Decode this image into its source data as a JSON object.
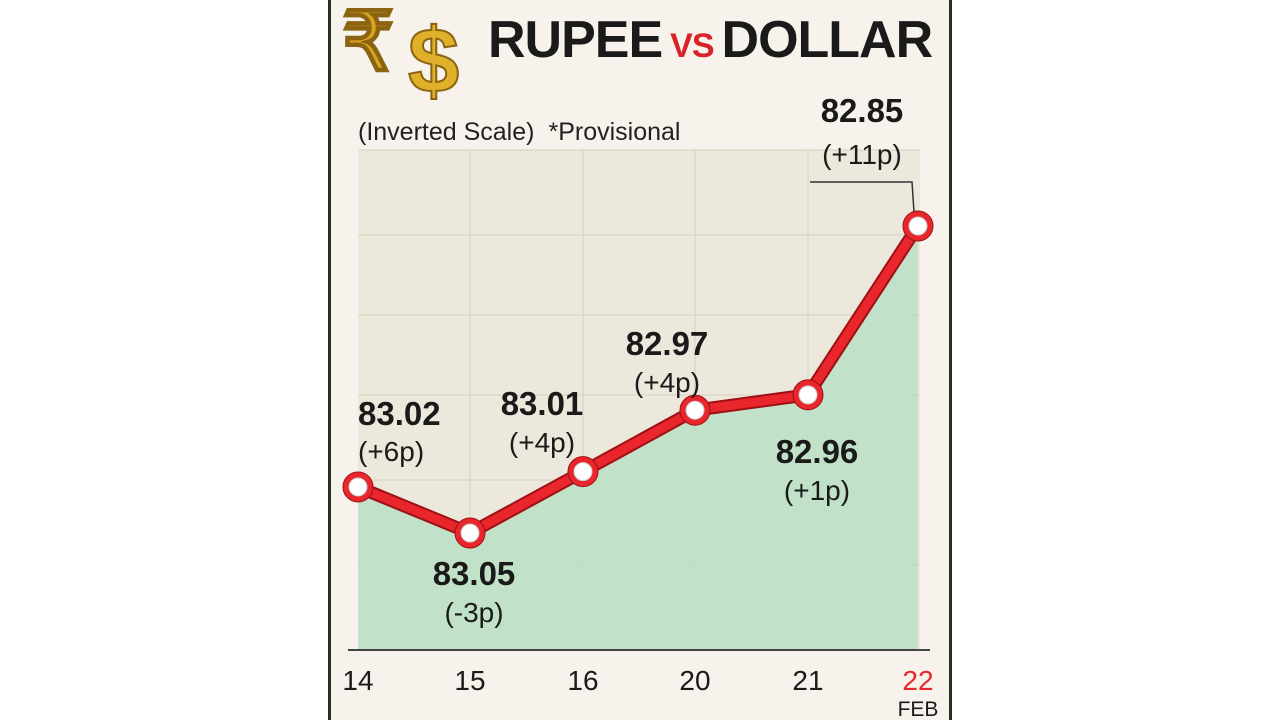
{
  "header": {
    "title_part1": "RUPEE",
    "title_vs": "VS",
    "title_part2": "DOLLAR",
    "note_scale": "(Inverted Scale)",
    "note_provisional": "*Provisional",
    "logo_icons": [
      "rupee-symbol-icon",
      "dollar-symbol-icon"
    ]
  },
  "chart_data": {
    "type": "line",
    "inverted_y": true,
    "title": "RUPEE VS DOLLAR",
    "x": [
      "14",
      "15",
      "16",
      "20",
      "21",
      "22"
    ],
    "x_sublabel": "FEB",
    "values": [
      83.02,
      83.05,
      83.01,
      82.97,
      82.96,
      82.85
    ],
    "labels": [
      "83.02",
      "83.05",
      "83.01",
      "82.97",
      "82.96",
      "82.85"
    ],
    "changes": [
      "(+6p)",
      "(-3p)",
      "(+4p)",
      "(+4p)",
      "(+1p)",
      "(+11p)"
    ],
    "line_color": "#e8262c",
    "fill_color": "#b8e0c4",
    "grid": true
  }
}
